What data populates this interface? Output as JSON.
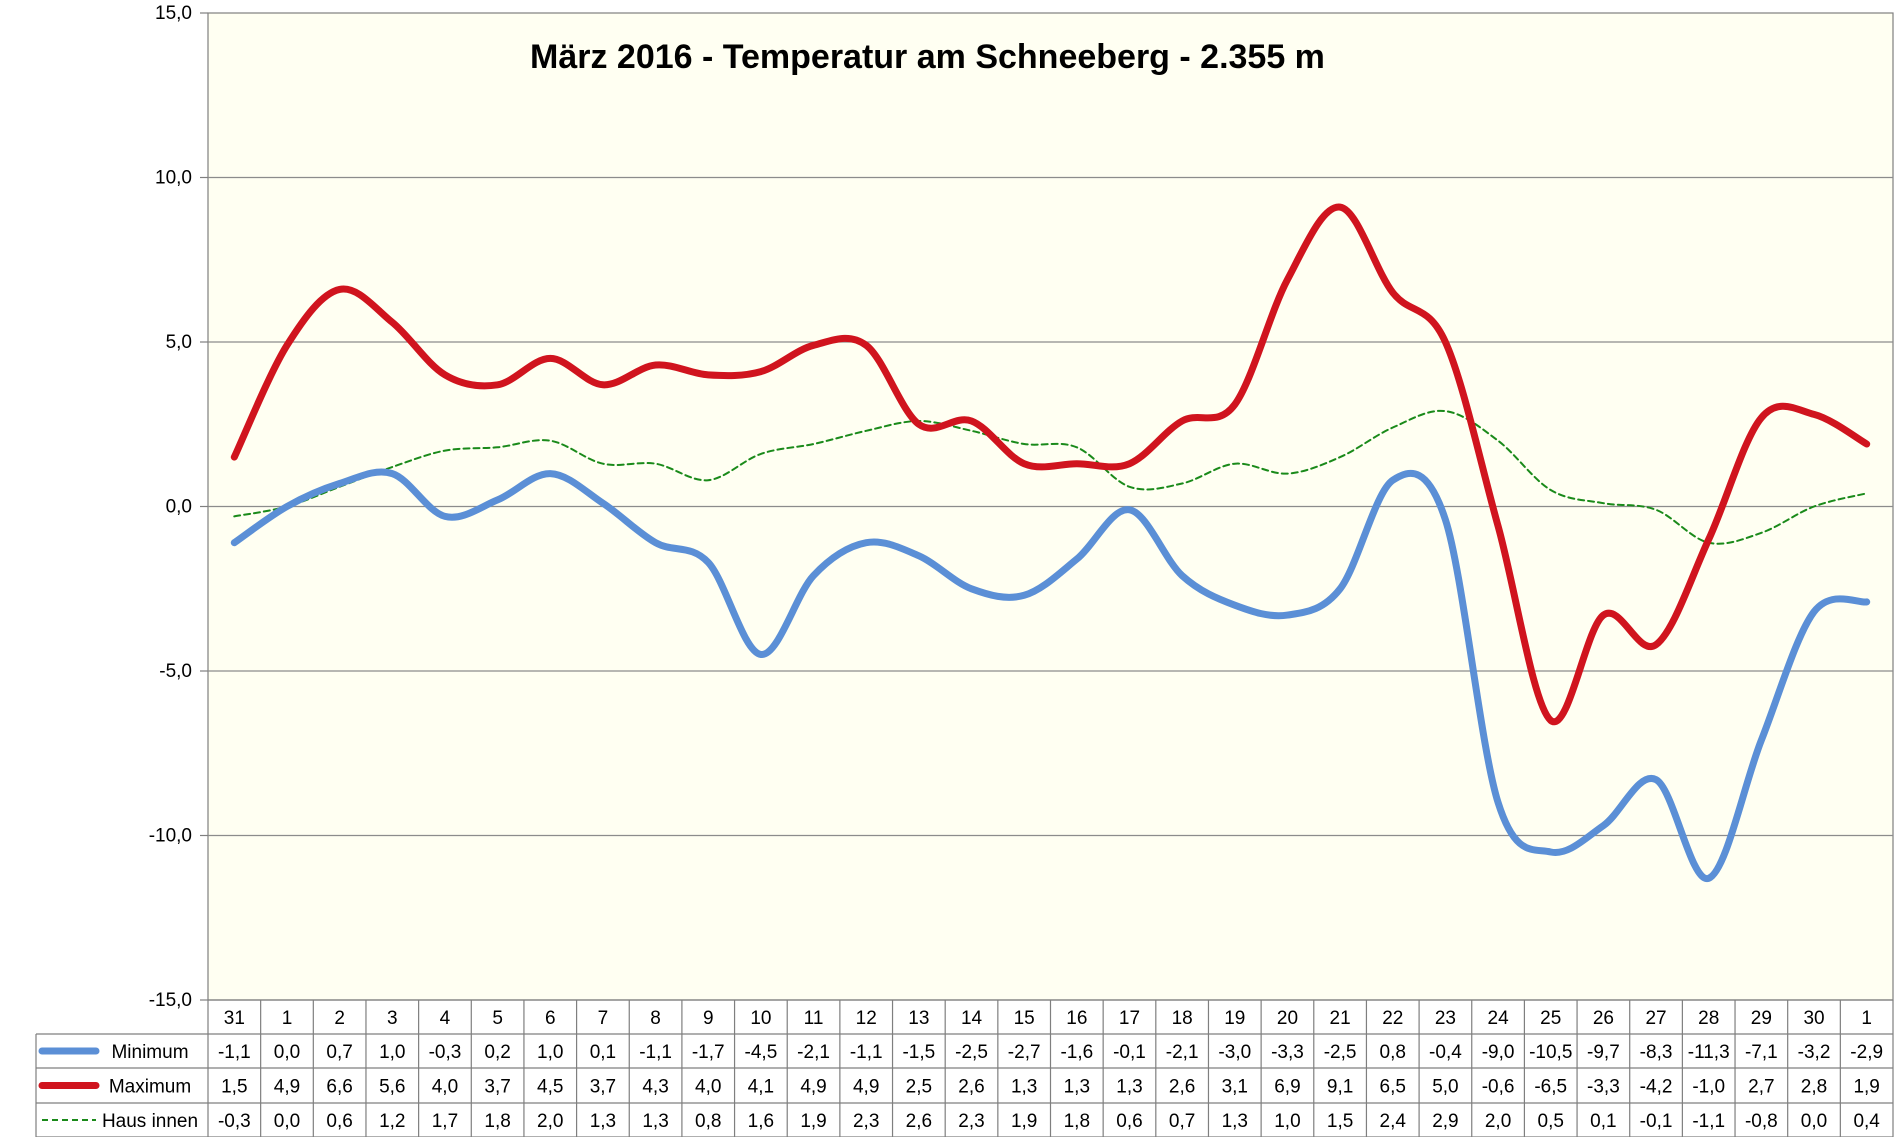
{
  "chart_data": {
    "type": "line",
    "title": "März 2016 - Temperatur am Schneeberg - 2.355 m",
    "categories": [
      "31",
      "1",
      "2",
      "3",
      "4",
      "5",
      "6",
      "7",
      "8",
      "9",
      "10",
      "11",
      "12",
      "13",
      "14",
      "15",
      "16",
      "17",
      "18",
      "19",
      "20",
      "21",
      "22",
      "23",
      "24",
      "25",
      "26",
      "27",
      "28",
      "29",
      "30",
      "1"
    ],
    "ylim": [
      -15,
      15
    ],
    "yticks": [
      -15,
      -10,
      -5,
      0,
      5,
      10,
      15
    ],
    "ytick_labels": [
      "-15,0",
      "-10,0",
      "-5,0",
      "0,0",
      "5,0",
      "10,0",
      "15,0"
    ],
    "grid": true,
    "plot_background": "#fffff2",
    "series": [
      {
        "name": "Minimum",
        "color": "#5b8fd6",
        "style": "solid-thick",
        "values": [
          -1.1,
          0.0,
          0.7,
          1.0,
          -0.3,
          0.2,
          1.0,
          0.1,
          -1.1,
          -1.7,
          -4.5,
          -2.1,
          -1.1,
          -1.5,
          -2.5,
          -2.7,
          -1.6,
          -0.1,
          -2.1,
          -3.0,
          -3.3,
          -2.5,
          0.8,
          -0.4,
          -9.0,
          -10.5,
          -9.7,
          -8.3,
          -11.3,
          -7.1,
          -3.2,
          -2.9
        ],
        "labels": [
          "-1,1",
          "0,0",
          "0,7",
          "1,0",
          "-0,3",
          "0,2",
          "1,0",
          "0,1",
          "-1,1",
          "-1,7",
          "-4,5",
          "-2,1",
          "-1,1",
          "-1,5",
          "-2,5",
          "-2,7",
          "-1,6",
          "-0,1",
          "-2,1",
          "-3,0",
          "-3,3",
          "-2,5",
          "0,8",
          "-0,4",
          "-9,0",
          "-10,5",
          "-9,7",
          "-8,3",
          "-11,3",
          "-7,1",
          "-3,2",
          "-2,9"
        ]
      },
      {
        "name": "Maximum",
        "color": "#d0141e",
        "style": "solid-thick",
        "values": [
          1.5,
          4.9,
          6.6,
          5.6,
          4.0,
          3.7,
          4.5,
          3.7,
          4.3,
          4.0,
          4.1,
          4.9,
          4.9,
          2.5,
          2.6,
          1.3,
          1.3,
          1.3,
          2.6,
          3.1,
          6.9,
          9.1,
          6.5,
          5.0,
          -0.6,
          -6.5,
          -3.3,
          -4.2,
          -1.0,
          2.7,
          2.8,
          1.9
        ],
        "labels": [
          "1,5",
          "4,9",
          "6,6",
          "5,6",
          "4,0",
          "3,7",
          "4,5",
          "3,7",
          "4,3",
          "4,0",
          "4,1",
          "4,9",
          "4,9",
          "2,5",
          "2,6",
          "1,3",
          "1,3",
          "1,3",
          "2,6",
          "3,1",
          "6,9",
          "9,1",
          "6,5",
          "5,0",
          "-0,6",
          "-6,5",
          "-3,3",
          "-4,2",
          "-1,0",
          "2,7",
          "2,8",
          "1,9"
        ]
      },
      {
        "name": "Haus innen",
        "color": "#1a8a1a",
        "style": "dashed-thin",
        "values": [
          -0.3,
          0.0,
          0.6,
          1.2,
          1.7,
          1.8,
          2.0,
          1.3,
          1.3,
          0.8,
          1.6,
          1.9,
          2.3,
          2.6,
          2.3,
          1.9,
          1.8,
          0.6,
          0.7,
          1.3,
          1.0,
          1.5,
          2.4,
          2.9,
          2.0,
          0.5,
          0.1,
          -0.1,
          -1.1,
          -0.8,
          0.0,
          0.4
        ],
        "labels": [
          "-0,3",
          "0,0",
          "0,6",
          "1,2",
          "1,7",
          "1,8",
          "2,0",
          "1,3",
          "1,3",
          "0,8",
          "1,6",
          "1,9",
          "2,3",
          "2,6",
          "2,3",
          "1,9",
          "1,8",
          "0,6",
          "0,7",
          "1,3",
          "1,0",
          "1,5",
          "2,4",
          "2,9",
          "2,0",
          "0,5",
          "0,1",
          "-0,1",
          "-1,1",
          "-0,8",
          "0,0",
          "0,4"
        ]
      }
    ]
  }
}
